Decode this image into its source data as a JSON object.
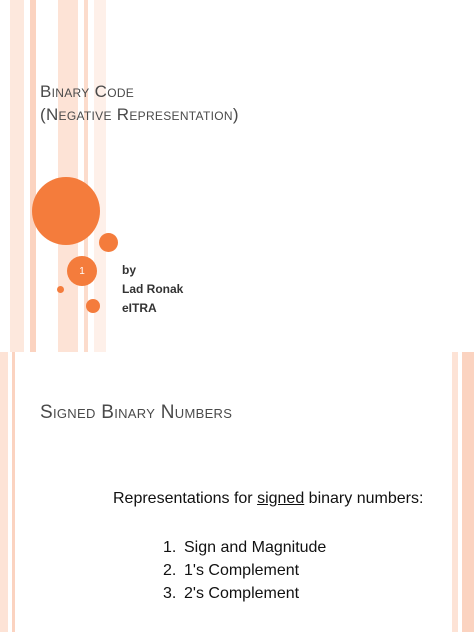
{
  "slide1": {
    "title_line1": "Binary Code",
    "title_line2": "(Negative Representation)",
    "slide_number": "1",
    "byline": [
      "by",
      "Lad Ronak",
      "eITRA"
    ]
  },
  "slide2": {
    "title": "Signed Binary Numbers",
    "intro_before": "Representations for ",
    "intro_underlined": "signed",
    "intro_after": " binary numbers:",
    "list": [
      {
        "num": "1.",
        "text": "Sign and Magnitude"
      },
      {
        "num": "2.",
        "text": "1's Complement"
      },
      {
        "num": "3.",
        "text": "2's Complement"
      }
    ]
  },
  "colors": {
    "accent": "#f47c3c",
    "stripe_light": "#fde3d6",
    "stripe_mid": "#f9c7b0"
  }
}
